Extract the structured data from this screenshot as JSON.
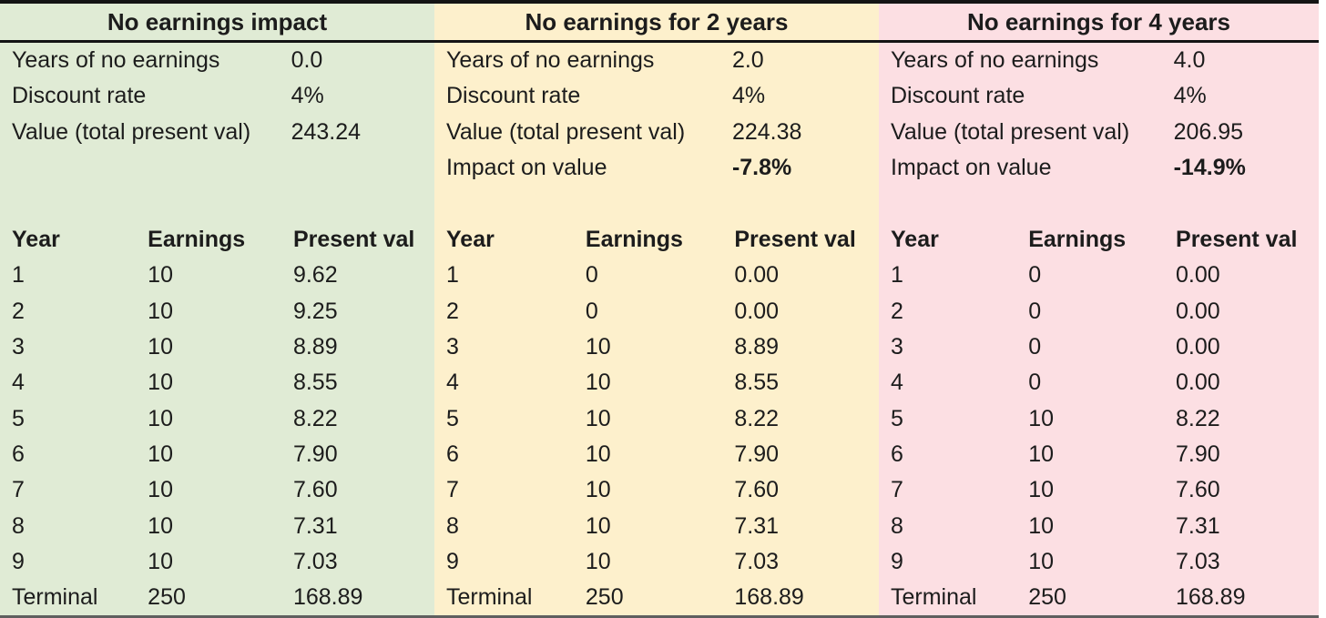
{
  "page": {
    "text_color": "#1c1c1c",
    "top_border_color": "#141414",
    "title_rule_color": "#141414",
    "bottom_border_color": "#5f5f5f"
  },
  "panels": [
    {
      "title": "No earnings impact",
      "bg": "#e0ebd5",
      "params": [
        {
          "label": "Years of no earnings",
          "value": "0.0",
          "bold_value": false
        },
        {
          "label": "Discount rate",
          "value": "4%",
          "bold_value": false
        },
        {
          "label": "Value (total present val)",
          "value": "243.24",
          "bold_value": false
        }
      ],
      "table": {
        "headers": [
          "Year",
          "Earnings",
          "Present val"
        ],
        "rows": [
          [
            "1",
            "10",
            "9.62"
          ],
          [
            "2",
            "10",
            "9.25"
          ],
          [
            "3",
            "10",
            "8.89"
          ],
          [
            "4",
            "10",
            "8.55"
          ],
          [
            "5",
            "10",
            "8.22"
          ],
          [
            "6",
            "10",
            "7.90"
          ],
          [
            "7",
            "10",
            "7.60"
          ],
          [
            "8",
            "10",
            "7.31"
          ],
          [
            "9",
            "10",
            "7.03"
          ],
          [
            "Terminal",
            "250",
            "168.89"
          ]
        ]
      }
    },
    {
      "title": "No earnings for 2 years",
      "bg": "#fdf0cc",
      "params": [
        {
          "label": "Years of no earnings",
          "value": "2.0",
          "bold_value": false
        },
        {
          "label": "Discount rate",
          "value": "4%",
          "bold_value": false
        },
        {
          "label": "Value (total present val)",
          "value": "224.38",
          "bold_value": false
        },
        {
          "label": "Impact on value",
          "value": "-7.8%",
          "bold_value": true
        }
      ],
      "table": {
        "headers": [
          "Year",
          "Earnings",
          "Present val"
        ],
        "rows": [
          [
            "1",
            "0",
            "0.00"
          ],
          [
            "2",
            "0",
            "0.00"
          ],
          [
            "3",
            "10",
            "8.89"
          ],
          [
            "4",
            "10",
            "8.55"
          ],
          [
            "5",
            "10",
            "8.22"
          ],
          [
            "6",
            "10",
            "7.90"
          ],
          [
            "7",
            "10",
            "7.60"
          ],
          [
            "8",
            "10",
            "7.31"
          ],
          [
            "9",
            "10",
            "7.03"
          ],
          [
            "Terminal",
            "250",
            "168.89"
          ]
        ]
      }
    },
    {
      "title": "No earnings for 4 years",
      "bg": "#fcdfe3",
      "params": [
        {
          "label": "Years of no earnings",
          "value": "4.0",
          "bold_value": false
        },
        {
          "label": "Discount rate",
          "value": "4%",
          "bold_value": false
        },
        {
          "label": "Value (total present val)",
          "value": "206.95",
          "bold_value": false
        },
        {
          "label": "Impact on value",
          "value": "-14.9%",
          "bold_value": true
        }
      ],
      "table": {
        "headers": [
          "Year",
          "Earnings",
          "Present val"
        ],
        "rows": [
          [
            "1",
            "0",
            "0.00"
          ],
          [
            "2",
            "0",
            "0.00"
          ],
          [
            "3",
            "0",
            "0.00"
          ],
          [
            "4",
            "0",
            "0.00"
          ],
          [
            "5",
            "10",
            "8.22"
          ],
          [
            "6",
            "10",
            "7.90"
          ],
          [
            "7",
            "10",
            "7.60"
          ],
          [
            "8",
            "10",
            "7.31"
          ],
          [
            "9",
            "10",
            "7.03"
          ],
          [
            "Terminal",
            "250",
            "168.89"
          ]
        ]
      }
    }
  ]
}
